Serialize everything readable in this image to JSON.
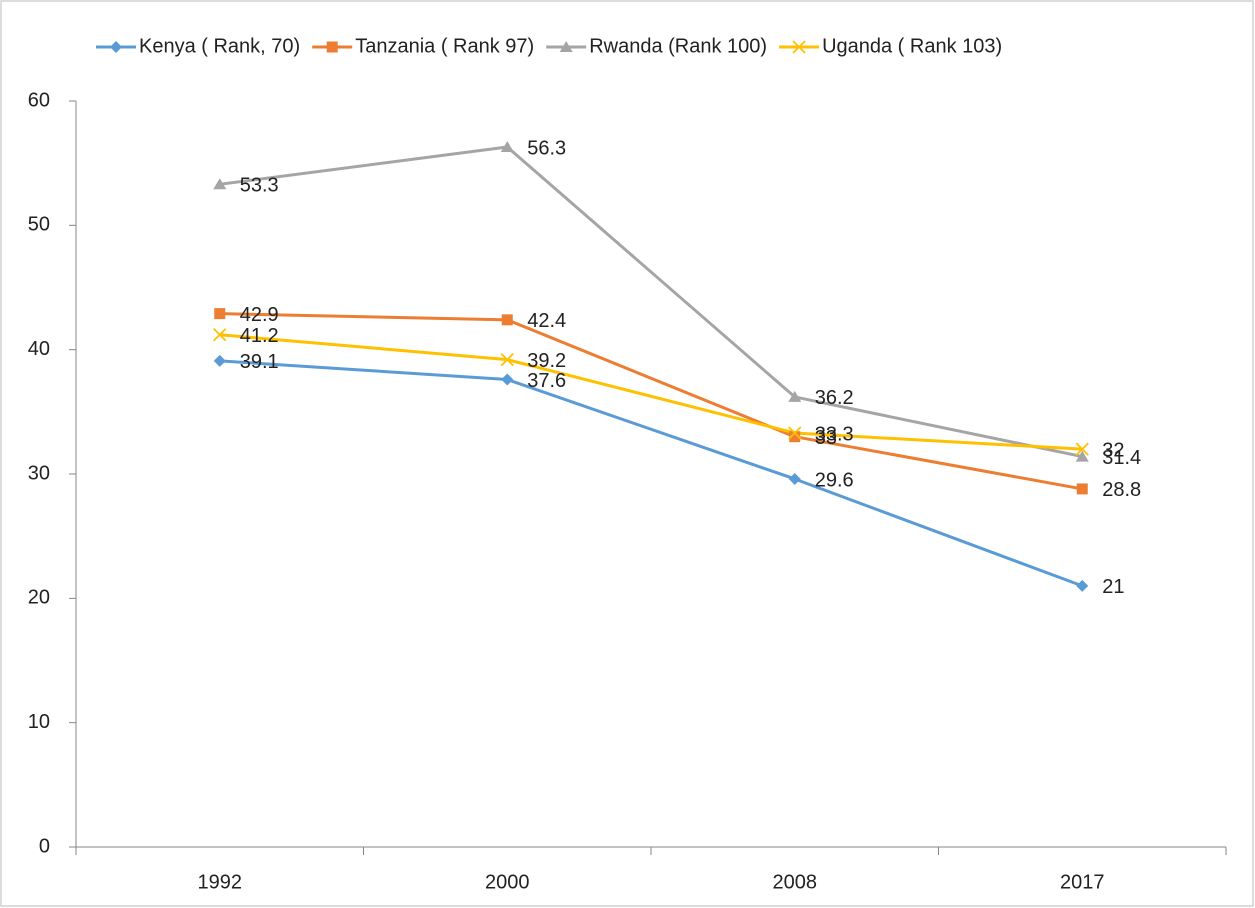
{
  "chart_data": {
    "type": "line",
    "categories": [
      "1992",
      "2000",
      "2008",
      "2017"
    ],
    "series": [
      {
        "name": "Kenya ( Rank, 70)",
        "color": "#5b9bd5",
        "marker": "diamond",
        "values": [
          39.1,
          37.6,
          29.6,
          21
        ]
      },
      {
        "name": "Tanzania ( Rank 97)",
        "color": "#ed7d31",
        "marker": "square",
        "values": [
          42.9,
          42.4,
          33,
          28.8
        ]
      },
      {
        "name": "Rwanda (Rank 100)",
        "color": "#a5a5a5",
        "marker": "triangle",
        "values": [
          53.3,
          56.3,
          36.2,
          31.4
        ]
      },
      {
        "name": "Uganda ( Rank 103)",
        "color": "#ffc000",
        "marker": "x",
        "values": [
          41.2,
          39.2,
          33.3,
          32
        ]
      }
    ],
    "ylim": [
      0,
      60
    ],
    "yticks": [
      0,
      10,
      20,
      30,
      40,
      50,
      60
    ],
    "grid": false,
    "legend": "top",
    "data_labels": true
  }
}
